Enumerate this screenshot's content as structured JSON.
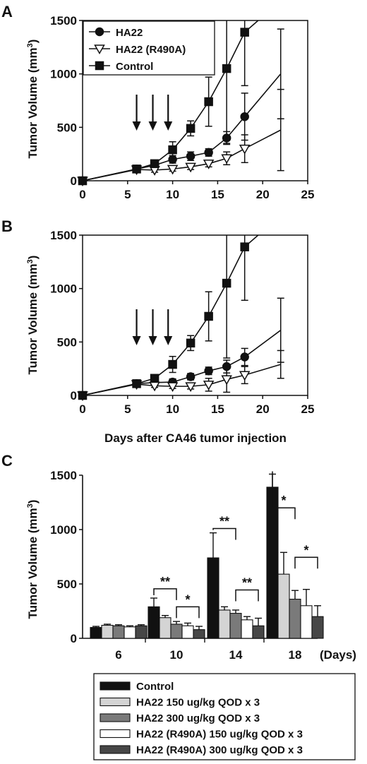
{
  "panel_letters": [
    "A",
    "B",
    "C"
  ],
  "chart_data": [
    {
      "type": "line",
      "panel": "A",
      "ylabel": "Tumor Volume (mm3)",
      "ylabel_main": "Tumor Volume (mm",
      "ylabel_sup": "3",
      "ylabel_end": ")",
      "xlabel": "",
      "xlim": [
        0,
        25
      ],
      "ylim": [
        0,
        1500
      ],
      "xticks": [
        "0",
        "5",
        "10",
        "15",
        "20",
        "25"
      ],
      "yticks": [
        "0",
        "500",
        "1000",
        "1500"
      ],
      "legend_position": "top-left",
      "treatment_arrows_days": [
        6,
        7.8,
        9.5
      ],
      "series": [
        {
          "name": "HA22",
          "marker": "circle",
          "fill": "#111111",
          "points": [
            [
              0,
              0
            ],
            [
              6,
              110
            ],
            [
              8,
              145
            ],
            [
              10,
              200
            ],
            [
              12,
              230
            ],
            [
              14,
              265
            ],
            [
              16,
              400
            ],
            [
              18,
              600
            ],
            [
              22,
              1000
            ]
          ],
          "err_up": [
            0,
            20,
            20,
            35,
            40,
            35,
            60,
            220,
            420
          ],
          "err_down": [
            0,
            20,
            20,
            35,
            40,
            35,
            60,
            220,
            420
          ]
        },
        {
          "name": "HA22 (R490A)",
          "marker": "triangle-down",
          "fill": "#ffffff",
          "points": [
            [
              0,
              0
            ],
            [
              6,
              105
            ],
            [
              8,
              100
            ],
            [
              10,
              110
            ],
            [
              12,
              130
            ],
            [
              14,
              160
            ],
            [
              16,
              210
            ],
            [
              18,
              300
            ],
            [
              22,
              475
            ]
          ],
          "err_up": [
            0,
            20,
            20,
            20,
            25,
            30,
            60,
            130,
            380
          ],
          "err_down": [
            0,
            20,
            20,
            20,
            25,
            30,
            60,
            130,
            380
          ]
        },
        {
          "name": "Control",
          "marker": "square",
          "fill": "#111111",
          "points": [
            [
              0,
              0
            ],
            [
              6,
              110
            ],
            [
              8,
              160
            ],
            [
              10,
              290
            ],
            [
              12,
              490
            ],
            [
              14,
              740
            ],
            [
              16,
              1050
            ],
            [
              18,
              1390
            ],
            [
              19.5,
              1500
            ]
          ],
          "err_up": [
            0,
            20,
            25,
            75,
            70,
            230,
            700,
            500,
            0
          ],
          "err_down": [
            0,
            20,
            25,
            75,
            70,
            230,
            700,
            500,
            0
          ]
        }
      ]
    },
    {
      "type": "line",
      "panel": "B",
      "ylabel": "Tumor Volume (mm3)",
      "ylabel_main": "Tumor Volume (mm",
      "ylabel_sup": "3",
      "ylabel_end": ")",
      "xlabel": "Days after CA46 tumor injection",
      "xlim": [
        0,
        25
      ],
      "ylim": [
        0,
        1500
      ],
      "xticks": [
        "0",
        "5",
        "10",
        "15",
        "20",
        "25"
      ],
      "yticks": [
        "0",
        "500",
        "1000",
        "1500"
      ],
      "treatment_arrows_days": [
        6,
        7.8,
        9.5
      ],
      "series": [
        {
          "name": "HA22",
          "marker": "circle",
          "fill": "#111111",
          "points": [
            [
              0,
              0
            ],
            [
              6,
              110
            ],
            [
              8,
              120
            ],
            [
              10,
              125
            ],
            [
              12,
              175
            ],
            [
              14,
              230
            ],
            [
              16,
              270
            ],
            [
              18,
              360
            ],
            [
              22,
              610
            ]
          ],
          "err_up": [
            0,
            20,
            20,
            30,
            30,
            35,
            60,
            80,
            300
          ],
          "err_down": [
            0,
            20,
            20,
            30,
            30,
            35,
            60,
            80,
            300
          ]
        },
        {
          "name": "HA22 (R490A)",
          "marker": "triangle-down",
          "fill": "#ffffff",
          "points": [
            [
              0,
              0
            ],
            [
              6,
              105
            ],
            [
              8,
              90
            ],
            [
              10,
              85
            ],
            [
              12,
              85
            ],
            [
              14,
              100
            ],
            [
              16,
              150
            ],
            [
              18,
              190
            ],
            [
              22,
              290
            ]
          ],
          "err_up": [
            0,
            15,
            15,
            20,
            25,
            60,
            120,
            80,
            130
          ],
          "err_down": [
            0,
            15,
            15,
            20,
            25,
            60,
            120,
            80,
            130
          ]
        },
        {
          "name": "Control",
          "marker": "square",
          "fill": "#111111",
          "points": [
            [
              0,
              0
            ],
            [
              6,
              110
            ],
            [
              8,
              160
            ],
            [
              10,
              290
            ],
            [
              12,
              490
            ],
            [
              14,
              740
            ],
            [
              16,
              1050
            ],
            [
              18,
              1390
            ],
            [
              19.5,
              1500
            ]
          ],
          "err_up": [
            0,
            20,
            25,
            75,
            70,
            230,
            700,
            500,
            0
          ],
          "err_down": [
            0,
            20,
            25,
            75,
            70,
            230,
            700,
            500,
            0
          ]
        }
      ]
    },
    {
      "type": "bar",
      "panel": "C",
      "ylabel": "Tumor Volume (mm3)",
      "ylabel_main": "Tumor Volume (mm",
      "ylabel_sup": "3",
      "ylabel_end": ")",
      "categories": [
        "6",
        "10",
        "14",
        "18"
      ],
      "x_unit": "(Days)",
      "ylim": [
        0,
        1500
      ],
      "yticks": [
        "0",
        "500",
        "1000",
        "1500"
      ],
      "legend_position": "bottom",
      "series": [
        {
          "name": "Control",
          "fill": "#111111",
          "values": [
            100,
            290,
            740,
            1390
          ],
          "err": [
            10,
            80,
            230,
            120
          ]
        },
        {
          "name": "HA22 150 ug/kg QOD x 3",
          "fill": "#d4d4d4",
          "values": [
            120,
            190,
            260,
            590
          ],
          "err": [
            10,
            20,
            30,
            200
          ]
        },
        {
          "name": "HA22 300 ug/kg QOD x 3",
          "fill": "#7a7a7a",
          "values": [
            115,
            130,
            230,
            360
          ],
          "err": [
            10,
            25,
            30,
            80
          ]
        },
        {
          "name": "HA22 (R490A) 150 ug/kg QOD x 3",
          "fill": "#ffffff",
          "values": [
            105,
            115,
            170,
            300
          ],
          "err": [
            10,
            25,
            30,
            150
          ]
        },
        {
          "name": "HA22 (R490A) 300 ug/kg QOD x 3",
          "fill": "#474747",
          "values": [
            115,
            80,
            115,
            200
          ],
          "err": [
            10,
            30,
            70,
            100
          ]
        }
      ],
      "significance": [
        {
          "label": "**",
          "category": 1,
          "from": 0,
          "to": 2,
          "level": 455
        },
        {
          "label": "*",
          "category": 1,
          "from": 2,
          "to": 4,
          "level": 290
        },
        {
          "label": "**",
          "category": 2,
          "from": 0,
          "to": 2,
          "level": 1010
        },
        {
          "label": "**",
          "category": 2,
          "from": 2,
          "to": 4,
          "level": 445
        },
        {
          "label": "*",
          "category": 3,
          "from": 0,
          "to": 2,
          "level": 1200
        },
        {
          "label": "*",
          "category": 3,
          "from": 2,
          "to": 4,
          "level": 745
        }
      ]
    }
  ]
}
